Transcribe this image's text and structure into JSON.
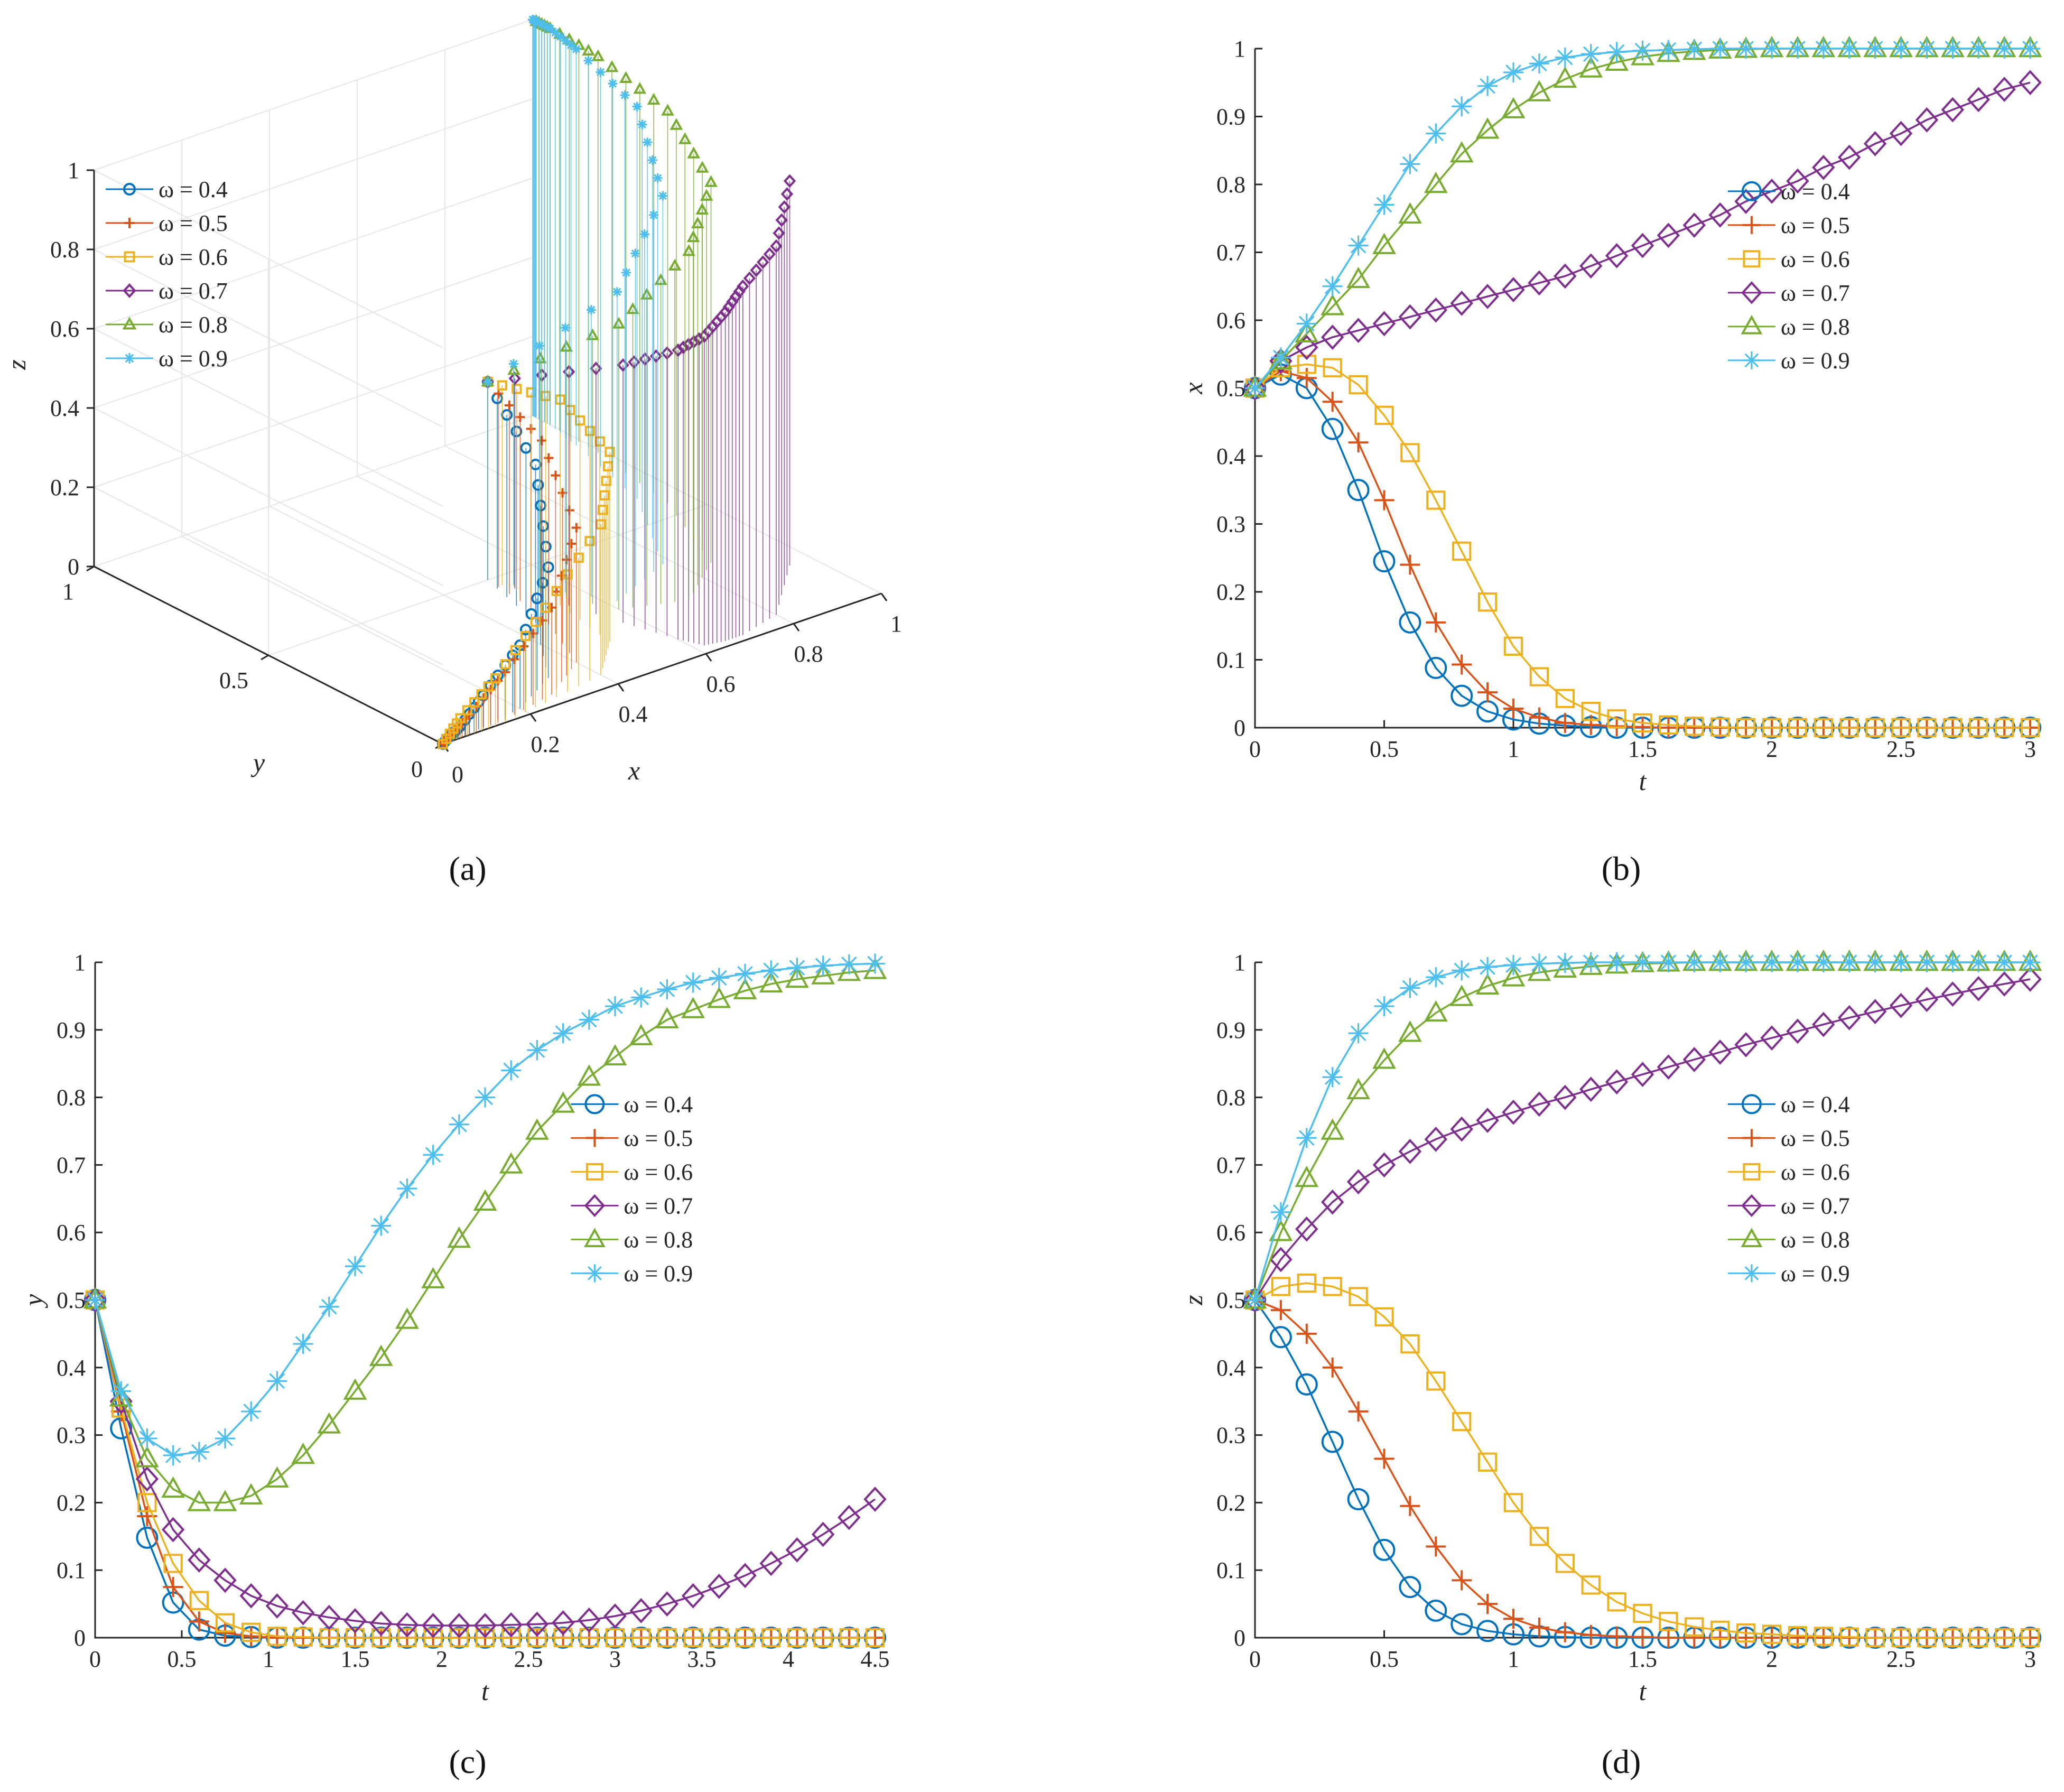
{
  "figure_captions": [
    "(a)",
    "(b)",
    "(c)",
    "(d)"
  ],
  "legend_prefix": "ω = ",
  "series_styles": [
    {
      "omega": "0.4",
      "color": "#0072BD",
      "marker": "circle"
    },
    {
      "omega": "0.5",
      "color": "#D95319",
      "marker": "plus"
    },
    {
      "omega": "0.6",
      "color": "#EDB120",
      "marker": "square"
    },
    {
      "omega": "0.7",
      "color": "#7E2F8E",
      "marker": "diamond"
    },
    {
      "omega": "0.8",
      "color": "#77AC30",
      "marker": "triangle"
    },
    {
      "omega": "0.9",
      "color": "#4DBEEE",
      "marker": "asterisk"
    }
  ],
  "chart_data": [
    {
      "id": "a",
      "type": "scatter",
      "title": "",
      "subtype": "3d-trajectory",
      "xlabel": "x",
      "ylabel": "y",
      "zlabel": "z",
      "xlim": [
        0,
        1
      ],
      "ylim": [
        0,
        1
      ],
      "zlim": [
        0,
        1
      ],
      "xticks": [
        "0",
        "0.2",
        "0.4",
        "0.6",
        "0.8",
        "1"
      ],
      "yticks": [
        "0",
        "0.5",
        "1"
      ],
      "zticks": [
        "0",
        "0.2",
        "0.4",
        "0.6",
        "0.8",
        "1"
      ],
      "legend": [
        "ω = 0.4",
        "ω = 0.5",
        "ω = 0.6",
        "ω = 0.7",
        "ω = 0.8",
        "ω = 0.9"
      ],
      "legend_position": "top-left",
      "series": [
        {
          "name": "ω = 0.4",
          "x": [
            0.5,
            0.45,
            0.32,
            0.2,
            0.1,
            0.04,
            0.01,
            0
          ],
          "y": [
            0.5,
            0.3,
            0.1,
            0.03,
            0.01,
            0,
            0,
            0
          ],
          "z": [
            0.5,
            0.4,
            0.28,
            0.16,
            0.08,
            0.03,
            0.01,
            0
          ]
        },
        {
          "name": "ω = 0.5",
          "x": [
            0.5,
            0.48,
            0.4,
            0.28,
            0.15,
            0.06,
            0.02,
            0
          ],
          "y": [
            0.5,
            0.32,
            0.12,
            0.04,
            0.01,
            0,
            0,
            0
          ],
          "z": [
            0.5,
            0.44,
            0.34,
            0.22,
            0.12,
            0.05,
            0.02,
            0
          ]
        },
        {
          "name": "ω = 0.6",
          "x": [
            0.5,
            0.53,
            0.5,
            0.4,
            0.25,
            0.12,
            0.04,
            0
          ],
          "y": [
            0.5,
            0.33,
            0.15,
            0.05,
            0.02,
            0,
            0,
            0
          ],
          "z": [
            0.5,
            0.52,
            0.48,
            0.38,
            0.24,
            0.12,
            0.05,
            0
          ]
        },
        {
          "name": "ω = 0.7",
          "x": [
            0.5,
            0.57,
            0.6,
            0.62,
            0.66,
            0.7,
            0.8,
            0.95
          ],
          "y": [
            0.5,
            0.2,
            0.08,
            0.03,
            0.02,
            0.02,
            0.05,
            0.2
          ],
          "z": [
            0.5,
            0.65,
            0.73,
            0.78,
            0.83,
            0.88,
            0.93,
            0.97
          ]
        },
        {
          "name": "ω = 0.8",
          "x": [
            0.5,
            0.6,
            0.72,
            0.85,
            0.95,
            0.99,
            1,
            1
          ],
          "y": [
            0.5,
            0.25,
            0.2,
            0.3,
            0.55,
            0.8,
            0.95,
            0.99
          ],
          "z": [
            0.5,
            0.72,
            0.88,
            0.96,
            0.99,
            1,
            1,
            1
          ]
        },
        {
          "name": "ω = 0.9",
          "x": [
            0.5,
            0.62,
            0.78,
            0.92,
            0.98,
            1,
            1,
            1
          ],
          "y": [
            0.5,
            0.28,
            0.35,
            0.6,
            0.85,
            0.95,
            0.99,
            1
          ],
          "z": [
            0.5,
            0.78,
            0.93,
            0.99,
            1,
            1,
            1,
            1
          ]
        }
      ]
    },
    {
      "id": "b",
      "type": "line",
      "title": "",
      "xlabel": "t",
      "ylabel": "x",
      "xlim": [
        0,
        3
      ],
      "ylim": [
        0,
        1
      ],
      "xticks": [
        "0",
        "0.5",
        "1",
        "1.5",
        "2",
        "2.5",
        "3"
      ],
      "yticks": [
        "0",
        "0.1",
        "0.2",
        "0.3",
        "0.4",
        "0.5",
        "0.6",
        "0.7",
        "0.8",
        "0.9",
        "1"
      ],
      "legend": [
        "ω = 0.4",
        "ω = 0.5",
        "ω = 0.6",
        "ω = 0.7",
        "ω = 0.8",
        "ω = 0.9"
      ],
      "legend_position": "right-upper",
      "x": [
        0,
        0.1,
        0.2,
        0.3,
        0.4,
        0.5,
        0.6,
        0.7,
        0.8,
        0.9,
        1,
        1.1,
        1.2,
        1.3,
        1.4,
        1.5,
        1.6,
        1.7,
        1.8,
        1.9,
        2,
        2.1,
        2.2,
        2.3,
        2.4,
        2.5,
        2.6,
        2.7,
        2.8,
        2.9,
        3
      ],
      "series": [
        {
          "name": "ω = 0.4",
          "values": [
            0.5,
            0.52,
            0.5,
            0.44,
            0.35,
            0.245,
            0.155,
            0.088,
            0.047,
            0.024,
            0.012,
            0.006,
            0.003,
            0.001,
            0,
            0,
            0,
            0,
            0,
            0,
            0,
            0,
            0,
            0,
            0,
            0,
            0,
            0,
            0,
            0,
            0
          ]
        },
        {
          "name": "ω = 0.5",
          "values": [
            0.5,
            0.525,
            0.515,
            0.48,
            0.42,
            0.335,
            0.24,
            0.155,
            0.093,
            0.052,
            0.028,
            0.015,
            0.007,
            0.004,
            0.002,
            0.001,
            0,
            0,
            0,
            0,
            0,
            0,
            0,
            0,
            0,
            0,
            0,
            0,
            0,
            0,
            0
          ]
        },
        {
          "name": "ω = 0.6",
          "values": [
            0.5,
            0.53,
            0.535,
            0.53,
            0.505,
            0.46,
            0.405,
            0.335,
            0.26,
            0.185,
            0.12,
            0.075,
            0.043,
            0.024,
            0.013,
            0.007,
            0.004,
            0.002,
            0.001,
            0,
            0,
            0,
            0,
            0,
            0,
            0,
            0,
            0,
            0,
            0,
            0
          ]
        },
        {
          "name": "ω = 0.7",
          "values": [
            0.5,
            0.54,
            0.56,
            0.575,
            0.585,
            0.595,
            0.605,
            0.615,
            0.625,
            0.635,
            0.645,
            0.655,
            0.665,
            0.68,
            0.695,
            0.71,
            0.725,
            0.74,
            0.755,
            0.775,
            0.79,
            0.805,
            0.825,
            0.84,
            0.86,
            0.875,
            0.895,
            0.91,
            0.925,
            0.94,
            0.95
          ]
        },
        {
          "name": "ω = 0.8",
          "values": [
            0.5,
            0.54,
            0.58,
            0.62,
            0.66,
            0.71,
            0.755,
            0.8,
            0.845,
            0.88,
            0.91,
            0.935,
            0.955,
            0.97,
            0.98,
            0.988,
            0.993,
            0.996,
            0.998,
            0.999,
            1,
            1,
            1,
            1,
            1,
            1,
            1,
            1,
            1,
            1,
            1
          ]
        },
        {
          "name": "ω = 0.9",
          "values": [
            0.5,
            0.545,
            0.595,
            0.65,
            0.71,
            0.77,
            0.83,
            0.875,
            0.915,
            0.945,
            0.965,
            0.978,
            0.987,
            0.992,
            0.995,
            0.997,
            0.998,
            0.999,
            1,
            1,
            1,
            1,
            1,
            1,
            1,
            1,
            1,
            1,
            1,
            1,
            1
          ]
        }
      ]
    },
    {
      "id": "c",
      "type": "line",
      "title": "",
      "xlabel": "t",
      "ylabel": "y",
      "xlim": [
        0,
        4.5
      ],
      "ylim": [
        0,
        1
      ],
      "xticks": [
        "0",
        "0.5",
        "1",
        "1.5",
        "2",
        "2.5",
        "3",
        "3.5",
        "4",
        "4.5"
      ],
      "yticks": [
        "0",
        "0.1",
        "0.2",
        "0.3",
        "0.4",
        "0.5",
        "0.6",
        "0.7",
        "0.8",
        "0.9",
        "1"
      ],
      "legend": [
        "ω = 0.4",
        "ω = 0.5",
        "ω = 0.6",
        "ω = 0.7",
        "ω = 0.8",
        "ω = 0.9"
      ],
      "legend_position": "right-upper",
      "x": [
        0,
        0.15,
        0.3,
        0.45,
        0.6,
        0.75,
        0.9,
        1.05,
        1.2,
        1.35,
        1.5,
        1.65,
        1.8,
        1.95,
        2.1,
        2.25,
        2.4,
        2.55,
        2.7,
        2.85,
        3,
        3.15,
        3.3,
        3.45,
        3.6,
        3.75,
        3.9,
        4.05,
        4.2,
        4.35,
        4.5
      ],
      "series": [
        {
          "name": "ω = 0.4",
          "values": [
            0.5,
            0.31,
            0.148,
            0.052,
            0.012,
            0.003,
            0.001,
            0,
            0,
            0,
            0,
            0,
            0,
            0,
            0,
            0,
            0,
            0,
            0,
            0,
            0,
            0,
            0,
            0,
            0,
            0,
            0,
            0,
            0,
            0,
            0
          ]
        },
        {
          "name": "ω = 0.5",
          "values": [
            0.5,
            0.335,
            0.18,
            0.075,
            0.024,
            0.007,
            0.002,
            0,
            0,
            0,
            0,
            0,
            0,
            0,
            0,
            0,
            0,
            0,
            0,
            0,
            0,
            0,
            0,
            0,
            0,
            0,
            0,
            0,
            0,
            0,
            0
          ]
        },
        {
          "name": "ω = 0.6",
          "values": [
            0.5,
            0.34,
            0.2,
            0.11,
            0.055,
            0.022,
            0.008,
            0.002,
            0.001,
            0,
            0,
            0,
            0,
            0,
            0,
            0,
            0,
            0,
            0,
            0,
            0,
            0,
            0,
            0,
            0,
            0,
            0,
            0,
            0,
            0,
            0
          ]
        },
        {
          "name": "ω = 0.7",
          "values": [
            0.5,
            0.35,
            0.235,
            0.16,
            0.115,
            0.085,
            0.062,
            0.047,
            0.037,
            0.03,
            0.025,
            0.021,
            0.019,
            0.018,
            0.018,
            0.018,
            0.019,
            0.02,
            0.022,
            0.026,
            0.032,
            0.04,
            0.05,
            0.062,
            0.076,
            0.092,
            0.11,
            0.13,
            0.153,
            0.178,
            0.205
          ]
        },
        {
          "name": "ω = 0.8",
          "values": [
            0.5,
            0.355,
            0.265,
            0.22,
            0.2,
            0.2,
            0.21,
            0.235,
            0.27,
            0.315,
            0.365,
            0.415,
            0.47,
            0.53,
            0.59,
            0.645,
            0.7,
            0.75,
            0.79,
            0.83,
            0.86,
            0.89,
            0.915,
            0.93,
            0.945,
            0.958,
            0.968,
            0.975,
            0.98,
            0.985,
            0.988
          ]
        },
        {
          "name": "ω = 0.9",
          "values": [
            0.5,
            0.365,
            0.295,
            0.27,
            0.275,
            0.295,
            0.335,
            0.38,
            0.435,
            0.49,
            0.55,
            0.61,
            0.665,
            0.715,
            0.76,
            0.8,
            0.84,
            0.87,
            0.895,
            0.915,
            0.935,
            0.948,
            0.96,
            0.97,
            0.977,
            0.983,
            0.988,
            0.992,
            0.995,
            0.997,
            0.998
          ]
        }
      ]
    },
    {
      "id": "d",
      "type": "line",
      "title": "",
      "xlabel": "t",
      "ylabel": "z",
      "xlim": [
        0,
        3
      ],
      "ylim": [
        0,
        1
      ],
      "xticks": [
        "0",
        "0.5",
        "1",
        "1.5",
        "2",
        "2.5",
        "3"
      ],
      "yticks": [
        "0",
        "0.1",
        "0.2",
        "0.3",
        "0.4",
        "0.5",
        "0.6",
        "0.7",
        "0.8",
        "0.9",
        "1"
      ],
      "legend": [
        "ω = 0.4",
        "ω = 0.5",
        "ω = 0.6",
        "ω = 0.7",
        "ω = 0.8",
        "ω = 0.9"
      ],
      "legend_position": "right-upper",
      "x": [
        0,
        0.1,
        0.2,
        0.3,
        0.4,
        0.5,
        0.6,
        0.7,
        0.8,
        0.9,
        1,
        1.1,
        1.2,
        1.3,
        1.4,
        1.5,
        1.6,
        1.7,
        1.8,
        1.9,
        2,
        2.1,
        2.2,
        2.3,
        2.4,
        2.5,
        2.6,
        2.7,
        2.8,
        2.9,
        3
      ],
      "series": [
        {
          "name": "ω = 0.4",
          "values": [
            0.5,
            0.445,
            0.375,
            0.29,
            0.205,
            0.13,
            0.075,
            0.04,
            0.02,
            0.01,
            0.005,
            0.002,
            0.001,
            0,
            0,
            0,
            0,
            0,
            0,
            0,
            0,
            0,
            0,
            0,
            0,
            0,
            0,
            0,
            0,
            0,
            0
          ]
        },
        {
          "name": "ω = 0.5",
          "values": [
            0.5,
            0.485,
            0.45,
            0.4,
            0.335,
            0.265,
            0.195,
            0.135,
            0.085,
            0.05,
            0.028,
            0.015,
            0.008,
            0.004,
            0.002,
            0.001,
            0,
            0,
            0,
            0,
            0,
            0,
            0,
            0,
            0,
            0,
            0,
            0,
            0,
            0,
            0
          ]
        },
        {
          "name": "ω = 0.6",
          "values": [
            0.5,
            0.52,
            0.525,
            0.52,
            0.505,
            0.475,
            0.435,
            0.38,
            0.32,
            0.26,
            0.2,
            0.15,
            0.11,
            0.078,
            0.053,
            0.036,
            0.024,
            0.016,
            0.011,
            0.007,
            0.005,
            0.003,
            0.002,
            0.001,
            0,
            0,
            0,
            0,
            0,
            0,
            0
          ]
        },
        {
          "name": "ω = 0.7",
          "values": [
            0.5,
            0.56,
            0.605,
            0.645,
            0.675,
            0.7,
            0.72,
            0.738,
            0.753,
            0.766,
            0.778,
            0.79,
            0.8,
            0.812,
            0.823,
            0.834,
            0.845,
            0.856,
            0.867,
            0.878,
            0.888,
            0.898,
            0.908,
            0.918,
            0.927,
            0.936,
            0.945,
            0.953,
            0.961,
            0.968,
            0.975
          ]
        },
        {
          "name": "ω = 0.8",
          "values": [
            0.5,
            0.6,
            0.68,
            0.75,
            0.81,
            0.855,
            0.895,
            0.925,
            0.948,
            0.965,
            0.977,
            0.985,
            0.99,
            0.994,
            0.996,
            0.998,
            0.999,
            1,
            1,
            1,
            1,
            1,
            1,
            1,
            1,
            1,
            1,
            1,
            1,
            1,
            1
          ]
        },
        {
          "name": "ω = 0.9",
          "values": [
            0.5,
            0.63,
            0.74,
            0.83,
            0.895,
            0.935,
            0.962,
            0.978,
            0.988,
            0.993,
            0.996,
            0.998,
            0.999,
            1,
            1,
            1,
            1,
            1,
            1,
            1,
            1,
            1,
            1,
            1,
            1,
            1,
            1,
            1,
            1,
            1,
            1
          ]
        }
      ]
    }
  ]
}
